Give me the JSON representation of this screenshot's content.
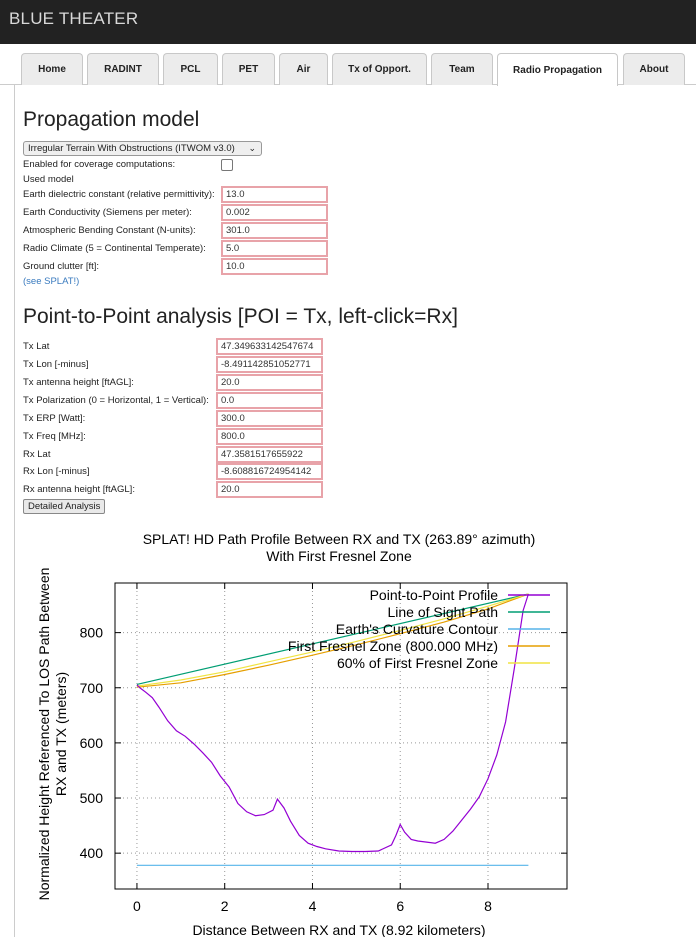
{
  "app": {
    "title": "BLUE THEATER"
  },
  "tabs": [
    {
      "label": "Home"
    },
    {
      "label": "RADINT"
    },
    {
      "label": "PCL"
    },
    {
      "label": "PET"
    },
    {
      "label": "Air"
    },
    {
      "label": "Tx of Opport."
    },
    {
      "label": "Team"
    },
    {
      "label": "Radio Propagation",
      "active": true
    },
    {
      "label": "About"
    }
  ],
  "propagation": {
    "heading": "Propagation model",
    "model_select": "Irregular Terrain With Obstructions (ITWOM v3.0)",
    "coverage_label": "Enabled for coverage computations:",
    "coverage_checked": false,
    "used_model_label": "Used model",
    "fields": [
      {
        "label": "Earth dielectric constant (relative permittivity):",
        "value": "13.0"
      },
      {
        "label": "Earth Conductivity (Siemens per meter):",
        "value": "0.002"
      },
      {
        "label": "Atmospheric Bending Constant (N-units):",
        "value": "301.0"
      },
      {
        "label": "Radio Climate (5 = Continental Temperate):",
        "value": "5.0"
      },
      {
        "label": "Ground clutter [ft]:",
        "value": "10.0"
      }
    ],
    "see_link": "(see SPLAT!)"
  },
  "p2p": {
    "heading": "Point-to-Point analysis [POI = Tx, left-click=Rx]",
    "fields": [
      {
        "label": "Tx Lat",
        "value": "47.349633142547674"
      },
      {
        "label": "Tx Lon [-minus]",
        "value": "-8.491142851052771"
      },
      {
        "label": "Tx antenna height [ftAGL]:",
        "value": "20.0"
      },
      {
        "label": "Tx Polarization (0 = Horizontal, 1 = Vertical):",
        "value": "0.0"
      },
      {
        "label": "Tx ERP [Watt]:",
        "value": "300.0"
      },
      {
        "label": "Tx Freq [MHz]:",
        "value": "800.0"
      },
      {
        "label": "Rx Lat",
        "value": "47.3581517655922"
      },
      {
        "label": "Rx Lon [-minus]",
        "value": "-8.608816724954142"
      },
      {
        "label": "Rx antenna height [ftAGL]:",
        "value": "20.0"
      }
    ],
    "detailed_button": "Detailed Analysis"
  },
  "chart_data": {
    "type": "line",
    "title": "SPLAT! HD Path Profile Between RX  and TX  (263.89° azimuth)",
    "subtitle": "With First Fresnel Zone",
    "xlabel": "Distance Between RX  and TX  (8.92 kilometers)",
    "ylabel_line1": "Normalized Height Referenced To LOS Path Between",
    "ylabel_line2": "RX  and TX  (meters)",
    "xlim": [
      -0.5,
      9.8
    ],
    "ylim": [
      335,
      890
    ],
    "xticks": [
      0,
      2,
      4,
      6,
      8
    ],
    "yticks": [
      400,
      500,
      600,
      700,
      800
    ],
    "grid": true,
    "legend_position": "top-right",
    "series": [
      {
        "name": "Point-to-Point Profile",
        "color": "#9400d3",
        "x": [
          0,
          0.1,
          0.2,
          0.35,
          0.5,
          0.7,
          0.9,
          1.1,
          1.3,
          1.5,
          1.7,
          1.9,
          2.1,
          2.3,
          2.5,
          2.7,
          2.9,
          3.1,
          3.2,
          3.35,
          3.5,
          3.7,
          3.9,
          4.1,
          4.3,
          4.6,
          4.9,
          5.2,
          5.5,
          5.8,
          5.9,
          6.0,
          6.1,
          6.25,
          6.4,
          6.6,
          6.8,
          7.0,
          7.2,
          7.4,
          7.6,
          7.8,
          8.0,
          8.2,
          8.4,
          8.6,
          8.8,
          8.92
        ],
        "y": [
          705,
          698,
          692,
          682,
          665,
          640,
          622,
          612,
          598,
          582,
          565,
          540,
          520,
          490,
          475,
          468,
          470,
          478,
          498,
          482,
          458,
          432,
          418,
          412,
          408,
          404,
          403,
          403,
          404,
          415,
          432,
          452,
          438,
          425,
          422,
          420,
          418,
          425,
          440,
          460,
          480,
          502,
          535,
          578,
          638,
          735,
          840,
          870
        ]
      },
      {
        "name": "Line of Sight Path",
        "color": "#009e73",
        "x": [
          0,
          8.92
        ],
        "y": [
          706,
          870
        ]
      },
      {
        "name": "Earth's Curvature Contour",
        "color": "#56b4e9",
        "x": [
          0,
          8.92
        ],
        "y": [
          378,
          378
        ]
      },
      {
        "name": "First Fresnel Zone (800.000 MHz)",
        "color": "#e69f00",
        "x": [
          0,
          1,
          2,
          3,
          4,
          5,
          6,
          7,
          8,
          8.92
        ],
        "y": [
          701,
          709,
          724,
          741,
          759,
          778,
          798,
          819,
          843,
          870
        ]
      },
      {
        "name": "60% of First Fresnel Zone",
        "color": "#f0e442",
        "x": [
          0,
          1,
          2,
          3,
          4,
          5,
          6,
          7,
          8,
          8.92
        ],
        "y": [
          703,
          714,
          729,
          747,
          765,
          784,
          804,
          825,
          848,
          870
        ]
      }
    ]
  }
}
